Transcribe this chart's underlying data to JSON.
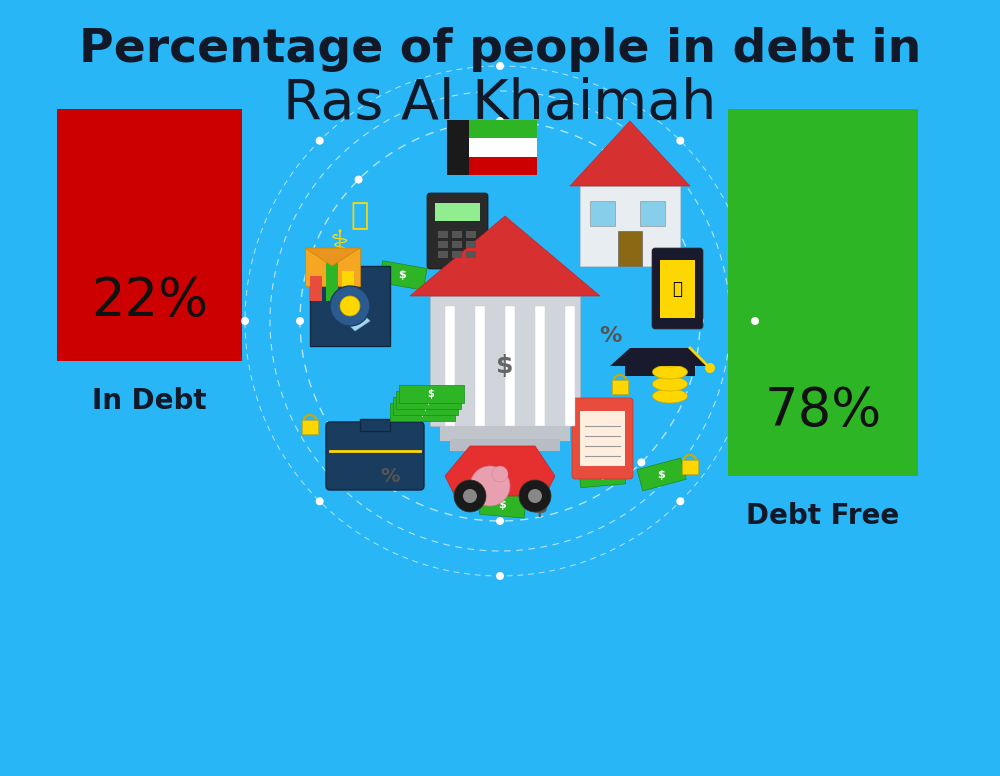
{
  "title_line1": "Percentage of people in debt in",
  "title_line2": "Ras Al Khaimah",
  "bg_color": "#29b6f6",
  "bar_left_label": "22%",
  "bar_left_color": "#cc0000",
  "bar_left_text": "In Debt",
  "bar_right_label": "78%",
  "bar_right_color": "#2db526",
  "bar_right_text": "Debt Free",
  "title_fontsize": 34,
  "subtitle_fontsize": 40,
  "bar_label_fontsize": 38,
  "bar_text_fontsize": 20,
  "title_color": "#111827",
  "label_color": "#111111",
  "bar_text_color": "#111827",
  "flag_colors": [
    "#cc0000",
    "#ffffff",
    "#2db526"
  ],
  "circ_color": "#1a85c8",
  "dot_color": "#ffffff"
}
